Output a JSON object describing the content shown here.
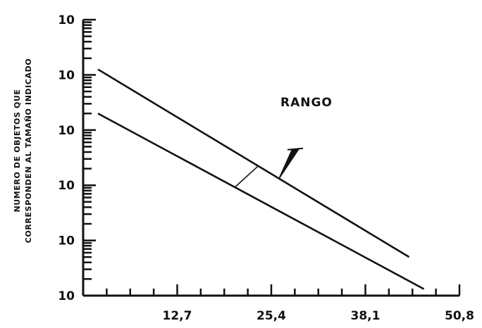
{
  "chart_data": {
    "type": "line",
    "title": "",
    "xlabel": "",
    "ylabel": [
      "NUMERO DE OBJETOS QUE",
      "CORRESPONDEN AL TAMAÑO INDICADO"
    ],
    "x_ticks": [
      "12,7",
      "25,4",
      "38,1",
      "50,8"
    ],
    "x_tick_values": [
      12.7,
      25.4,
      38.1,
      50.8
    ],
    "xlim": [
      0,
      50.8
    ],
    "y_ticks": [
      "10",
      "10",
      "10",
      "10",
      "10",
      "10"
    ],
    "y_scale": "log",
    "series": [
      {
        "x": [
          2,
          44
        ],
        "y": [
          4.1,
          0.7
        ]
      },
      {
        "x": [
          2,
          46
        ],
        "y": [
          3.3,
          0.12
        ]
      }
    ],
    "annotations": [
      {
        "text": "RANGO"
      }
    ]
  }
}
